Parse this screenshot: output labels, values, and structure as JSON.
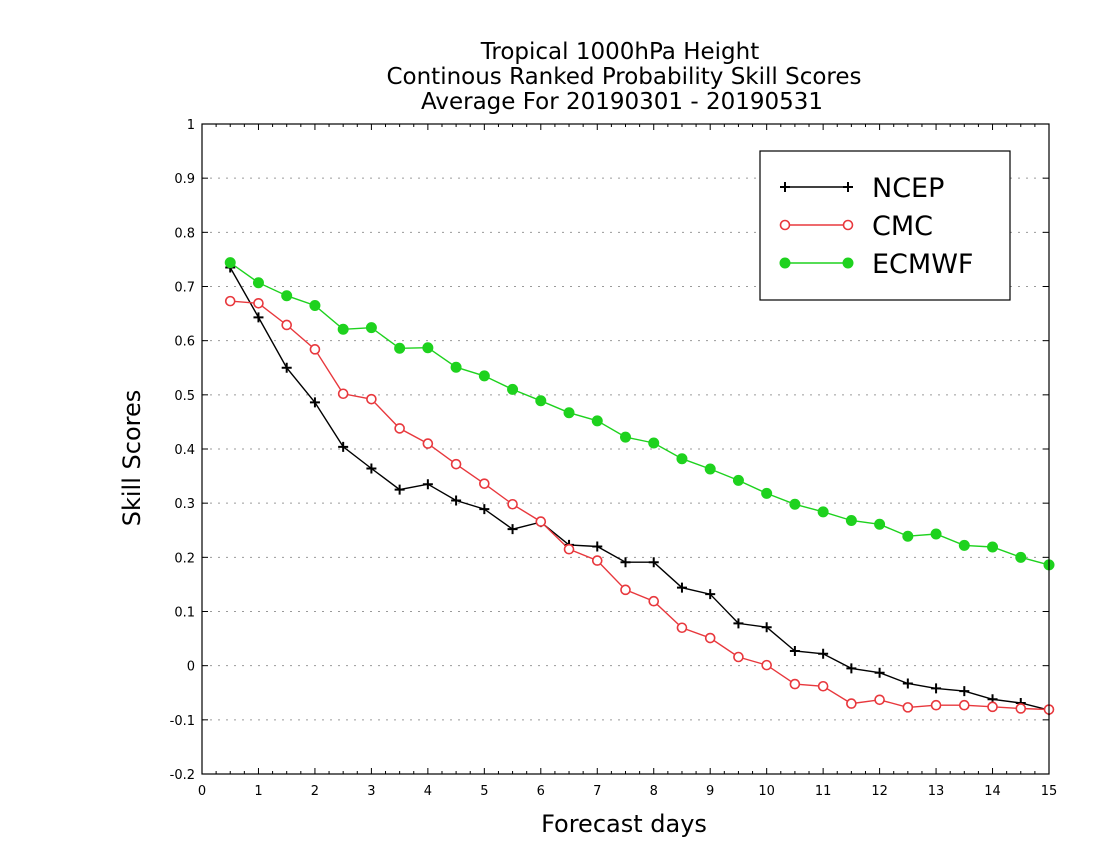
{
  "chart_data": {
    "type": "line",
    "title": [
      "Tropical 1000hPa Height",
      "Continous Ranked Probability Skill Scores",
      "Average For 20190301 - 20190531"
    ],
    "xlabel": "Forecast days",
    "ylabel": "Skill Scores",
    "xlim": [
      0,
      15
    ],
    "ylim": [
      -0.2,
      1
    ],
    "xticks": [
      0,
      1,
      2,
      3,
      4,
      5,
      6,
      7,
      8,
      9,
      10,
      11,
      12,
      13,
      14,
      15
    ],
    "xtick_labels": [
      "0",
      "1",
      "2",
      "3",
      "4",
      "5",
      "6",
      "7",
      "8",
      "9",
      "10",
      "11",
      "12",
      "13",
      "14",
      "15"
    ],
    "yticks": [
      -0.2,
      -0.1,
      0,
      0.1,
      0.2,
      0.3,
      0.4,
      0.5,
      0.6,
      0.7,
      0.8,
      0.9,
      1
    ],
    "ytick_labels": [
      "-0.2",
      "-0.1",
      "0",
      "0.1",
      "0.2",
      "0.3",
      "0.4",
      "0.5",
      "0.6",
      "0.7",
      "0.8",
      "0.9",
      "1"
    ],
    "grid": "horizontal dotted",
    "legend_position": "top-right",
    "x": [
      0.5,
      1,
      1.5,
      2,
      2.5,
      3,
      3.5,
      4,
      4.5,
      5,
      5.5,
      6,
      6.5,
      7,
      7.5,
      8,
      8.5,
      9,
      9.5,
      10,
      10.5,
      11,
      11.5,
      12,
      12.5,
      13,
      13.5,
      14,
      14.5,
      15
    ],
    "series": [
      {
        "name": "NCEP",
        "color": "#000000",
        "marker": "plus",
        "values": [
          0.735,
          0.643,
          0.55,
          0.486,
          0.404,
          0.364,
          0.325,
          0.335,
          0.305,
          0.289,
          0.252,
          0.265,
          0.223,
          0.22,
          0.191,
          0.191,
          0.144,
          0.132,
          0.078,
          0.071,
          0.027,
          0.022,
          -0.005,
          -0.013,
          -0.033,
          -0.042,
          -0.047,
          -0.062,
          -0.069,
          -0.082
        ]
      },
      {
        "name": "CMC",
        "color": "#e8383d",
        "marker": "open-circle",
        "values": [
          0.673,
          0.669,
          0.629,
          0.584,
          0.502,
          0.492,
          0.438,
          0.41,
          0.372,
          0.336,
          0.298,
          0.266,
          0.215,
          0.194,
          0.14,
          0.119,
          0.07,
          0.051,
          0.016,
          0.001,
          -0.034,
          -0.038,
          -0.07,
          -0.063,
          -0.077,
          -0.073,
          -0.073,
          -0.076,
          -0.079,
          -0.081
        ]
      },
      {
        "name": "ECMWF",
        "color": "#1ed21e",
        "marker": "filled-circle",
        "values": [
          0.744,
          0.707,
          0.683,
          0.665,
          0.621,
          0.624,
          0.586,
          0.587,
          0.551,
          0.535,
          0.51,
          0.489,
          0.467,
          0.452,
          0.422,
          0.411,
          0.382,
          0.363,
          0.342,
          0.318,
          0.298,
          0.284,
          0.268,
          0.261,
          0.239,
          0.243,
          0.222,
          0.219,
          0.2,
          0.186
        ]
      }
    ]
  }
}
